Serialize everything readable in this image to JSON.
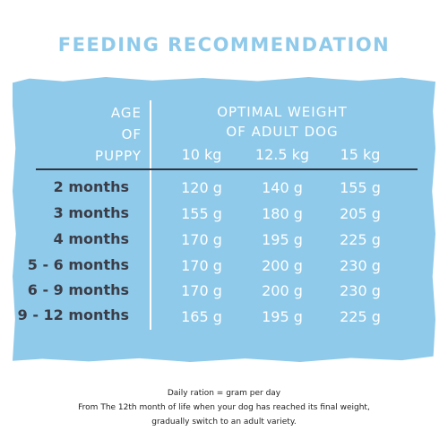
{
  "title": "FEEDING RECOMMENDATION",
  "table": {
    "age_header": [
      "AGE",
      "OF",
      "PUPPY"
    ],
    "weight_header": [
      "OPTIMAL WEIGHT",
      "OF ADULT DOG"
    ],
    "weight_columns": [
      "10 kg",
      "12.5 kg",
      "15 kg"
    ],
    "rows": [
      {
        "age": "2 months",
        "values": [
          "120 g",
          "140 g",
          "155 g"
        ]
      },
      {
        "age": "3 months",
        "values": [
          "155 g",
          "180 g",
          "205 g"
        ]
      },
      {
        "age": "4 months",
        "values": [
          "170 g",
          "195 g",
          "225 g"
        ]
      },
      {
        "age": "5 - 6 months",
        "values": [
          "170 g",
          "200 g",
          "230 g"
        ]
      },
      {
        "age": "6 - 9 months",
        "values": [
          "170 g",
          "200 g",
          "230 g"
        ]
      },
      {
        "age": "9 - 12 months",
        "values": [
          "165 g",
          "195 g",
          "225 g"
        ]
      }
    ]
  },
  "notes": [
    "Daily ration = gram per day",
    "From The 12th month of life when your dog has reached its final weight,",
    "gradually switch to an adult variety."
  ],
  "colors": {
    "panel": "#8fcaea",
    "title": "#8fcaea",
    "age_text": "#3a3d48"
  }
}
